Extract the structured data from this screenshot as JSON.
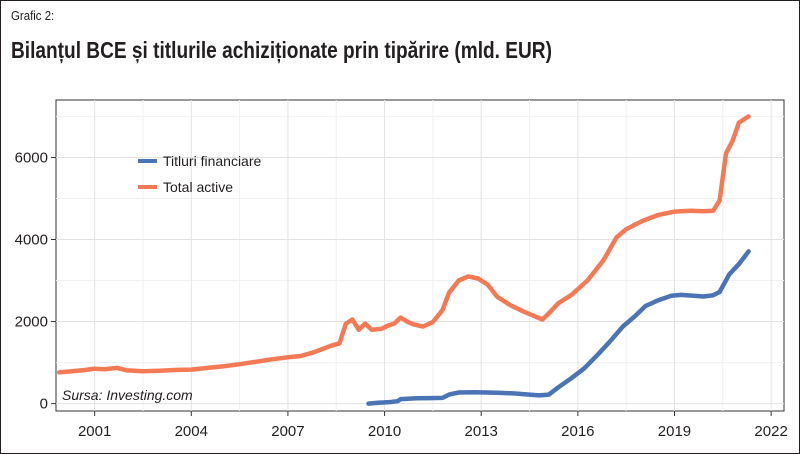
{
  "figure": {
    "label": "Grafic 2:",
    "title": "Bilanțul BCE și titlurile achiziționate prin tipărire (mld. EUR)",
    "source": "Sursa: Investing.com"
  },
  "chart_data": {
    "type": "line",
    "title": "Bilanțul BCE și titlurile achiziționate prin tipărire (mld. EUR)",
    "xlabel": "",
    "ylabel": "",
    "xlim": [
      1999.8,
      2022.4
    ],
    "ylim": [
      -180,
      7400
    ],
    "x_ticks": [
      2001,
      2004,
      2007,
      2010,
      2013,
      2016,
      2019,
      2022
    ],
    "y_ticks": [
      0,
      2000,
      4000,
      6000
    ],
    "grid": true,
    "legend_position": "top-left",
    "series": [
      {
        "name": "Titluri financiare",
        "color": "#4a74b5",
        "points": [
          [
            2009.5,
            0
          ],
          [
            2009.8,
            20
          ],
          [
            2010.2,
            40
          ],
          [
            2010.4,
            60
          ],
          [
            2010.5,
            110
          ],
          [
            2011.0,
            130
          ],
          [
            2011.4,
            135
          ],
          [
            2011.8,
            140
          ],
          [
            2012.0,
            220
          ],
          [
            2012.3,
            270
          ],
          [
            2012.8,
            275
          ],
          [
            2013.5,
            265
          ],
          [
            2014.0,
            250
          ],
          [
            2014.5,
            220
          ],
          [
            2014.8,
            200
          ],
          [
            2015.1,
            220
          ],
          [
            2015.4,
            400
          ],
          [
            2015.8,
            620
          ],
          [
            2016.2,
            860
          ],
          [
            2016.6,
            1180
          ],
          [
            2017.0,
            1520
          ],
          [
            2017.4,
            1880
          ],
          [
            2017.8,
            2150
          ],
          [
            2018.1,
            2380
          ],
          [
            2018.5,
            2520
          ],
          [
            2018.9,
            2630
          ],
          [
            2019.2,
            2650
          ],
          [
            2019.6,
            2630
          ],
          [
            2019.9,
            2610
          ],
          [
            2020.2,
            2640
          ],
          [
            2020.4,
            2720
          ],
          [
            2020.7,
            3150
          ],
          [
            2021.0,
            3400
          ],
          [
            2021.3,
            3710
          ]
        ]
      },
      {
        "name": "Total active",
        "color": "#f47a55",
        "points": [
          [
            1999.9,
            760
          ],
          [
            2000.3,
            790
          ],
          [
            2000.7,
            820
          ],
          [
            2001.0,
            850
          ],
          [
            2001.3,
            840
          ],
          [
            2001.7,
            870
          ],
          [
            2002.0,
            810
          ],
          [
            2002.5,
            790
          ],
          [
            2003.0,
            800
          ],
          [
            2003.5,
            820
          ],
          [
            2004.0,
            830
          ],
          [
            2004.5,
            870
          ],
          [
            2005.0,
            910
          ],
          [
            2005.5,
            960
          ],
          [
            2006.0,
            1020
          ],
          [
            2006.5,
            1080
          ],
          [
            2007.0,
            1130
          ],
          [
            2007.4,
            1160
          ],
          [
            2007.8,
            1250
          ],
          [
            2008.0,
            1310
          ],
          [
            2008.3,
            1400
          ],
          [
            2008.6,
            1470
          ],
          [
            2008.8,
            1950
          ],
          [
            2009.0,
            2050
          ],
          [
            2009.2,
            1800
          ],
          [
            2009.4,
            1950
          ],
          [
            2009.6,
            1800
          ],
          [
            2009.9,
            1820
          ],
          [
            2010.1,
            1900
          ],
          [
            2010.3,
            1950
          ],
          [
            2010.5,
            2100
          ],
          [
            2010.7,
            2000
          ],
          [
            2010.9,
            1930
          ],
          [
            2011.2,
            1880
          ],
          [
            2011.5,
            1990
          ],
          [
            2011.8,
            2280
          ],
          [
            2012.0,
            2700
          ],
          [
            2012.3,
            3000
          ],
          [
            2012.6,
            3100
          ],
          [
            2012.9,
            3050
          ],
          [
            2013.2,
            2900
          ],
          [
            2013.5,
            2600
          ],
          [
            2013.9,
            2400
          ],
          [
            2014.3,
            2250
          ],
          [
            2014.6,
            2150
          ],
          [
            2014.9,
            2050
          ],
          [
            2015.1,
            2200
          ],
          [
            2015.4,
            2450
          ],
          [
            2015.8,
            2650
          ],
          [
            2016.3,
            3000
          ],
          [
            2016.8,
            3500
          ],
          [
            2017.2,
            4050
          ],
          [
            2017.5,
            4250
          ],
          [
            2018.0,
            4450
          ],
          [
            2018.5,
            4600
          ],
          [
            2019.0,
            4680
          ],
          [
            2019.5,
            4700
          ],
          [
            2019.9,
            4690
          ],
          [
            2020.2,
            4700
          ],
          [
            2020.4,
            4950
          ],
          [
            2020.6,
            6100
          ],
          [
            2020.8,
            6400
          ],
          [
            2021.0,
            6850
          ],
          [
            2021.3,
            7000
          ]
        ]
      }
    ]
  }
}
